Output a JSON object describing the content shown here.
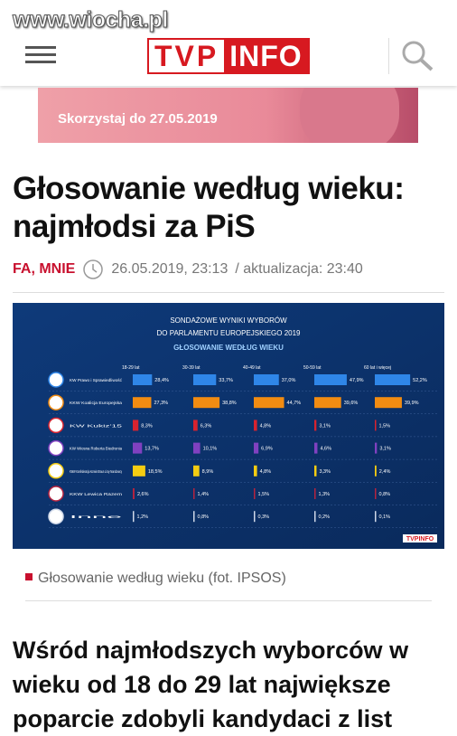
{
  "header": {
    "watermark": "www.wiocha.pl",
    "logo_left": "TVP",
    "logo_right": "INFO"
  },
  "banner": {
    "text": "Skorzystaj do 27.05.2019"
  },
  "article": {
    "title_lines": [
      "Głosowanie według wieku:",
      "najmłodsi za PiS"
    ],
    "author": "FA, MNIE",
    "date": "26.05.2019, 23:13",
    "updated": "/ aktualizacja: 23:40"
  },
  "chart_data": {
    "type": "bar",
    "title_lines": [
      "SONDAŻOWE WYNIKI WYBORÓW",
      "DO PARLAMENTU EUROPEJSKIEGO 2019"
    ],
    "subtitle": "GŁOSOWANIE WEDŁUG WIEKU",
    "brand": "TVPINFO",
    "categories": [
      "18-29 lat",
      "30-39 lat",
      "40-49 lat",
      "50-59 lat",
      "60 lat i więcej"
    ],
    "series": [
      {
        "name": "KW Prawo i Sprawiedliwość",
        "color": "#2f86e8",
        "values": [
          28.4,
          33.7,
          37.0,
          47.9,
          52.2
        ],
        "value_labels": [
          "28,4%",
          "33,7%",
          "37,0%",
          "47,9%",
          "52,2%"
        ]
      },
      {
        "name": "KKW Koalicja Europejska",
        "color": "#f28c12",
        "values": [
          27.3,
          38.8,
          44.7,
          39.6,
          39.9
        ],
        "value_labels": [
          "27,3%",
          "38,8%",
          "44,7%",
          "39,6%",
          "39,9%"
        ]
      },
      {
        "name": "KW Kukiz'15",
        "color": "#d8232f",
        "values": [
          8.3,
          6.3,
          4.8,
          3.1,
          1.5
        ],
        "value_labels": [
          "8,3%",
          "6,3%",
          "4,8%",
          "3,1%",
          "1,5%"
        ]
      },
      {
        "name": "KW Wiosna Roberta Biedronia",
        "color": "#8041c0",
        "values": [
          13.7,
          10.1,
          6.9,
          4.6,
          3.1
        ],
        "value_labels": [
          "13,7%",
          "10,1%",
          "6,9%",
          "4,6%",
          "3,1%"
        ]
      },
      {
        "name": "KWW Konfederacja Korwin Braun Liroy Narodowcy",
        "color": "#f4cc12",
        "values": [
          18.5,
          8.9,
          4.8,
          3.3,
          2.4
        ],
        "value_labels": [
          "18,5%",
          "8,9%",
          "4,8%",
          "3,3%",
          "2,4%"
        ]
      },
      {
        "name": "KKW Lewica Razem",
        "color": "#b5233f",
        "values": [
          2.6,
          1.4,
          1.5,
          1.3,
          0.8
        ],
        "value_labels": [
          "2,6%",
          "1,4%",
          "1,5%",
          "1,3%",
          "0,8%"
        ]
      },
      {
        "name": "Inne",
        "color": "#cfd8e8",
        "values": [
          1.2,
          0.8,
          0.3,
          0.2,
          0.1
        ],
        "value_labels": [
          "1,2%",
          "0,8%",
          "0,3%",
          "0,2%",
          "0,1%"
        ]
      }
    ]
  },
  "caption": "Głosowanie według wieku (fot. IPSOS)",
  "body_lines": [
    "Wśród najmłodszych wyborców w",
    "wieku od 18 do 29 lat największe",
    "poparcie zdobyli kandydaci z list"
  ]
}
